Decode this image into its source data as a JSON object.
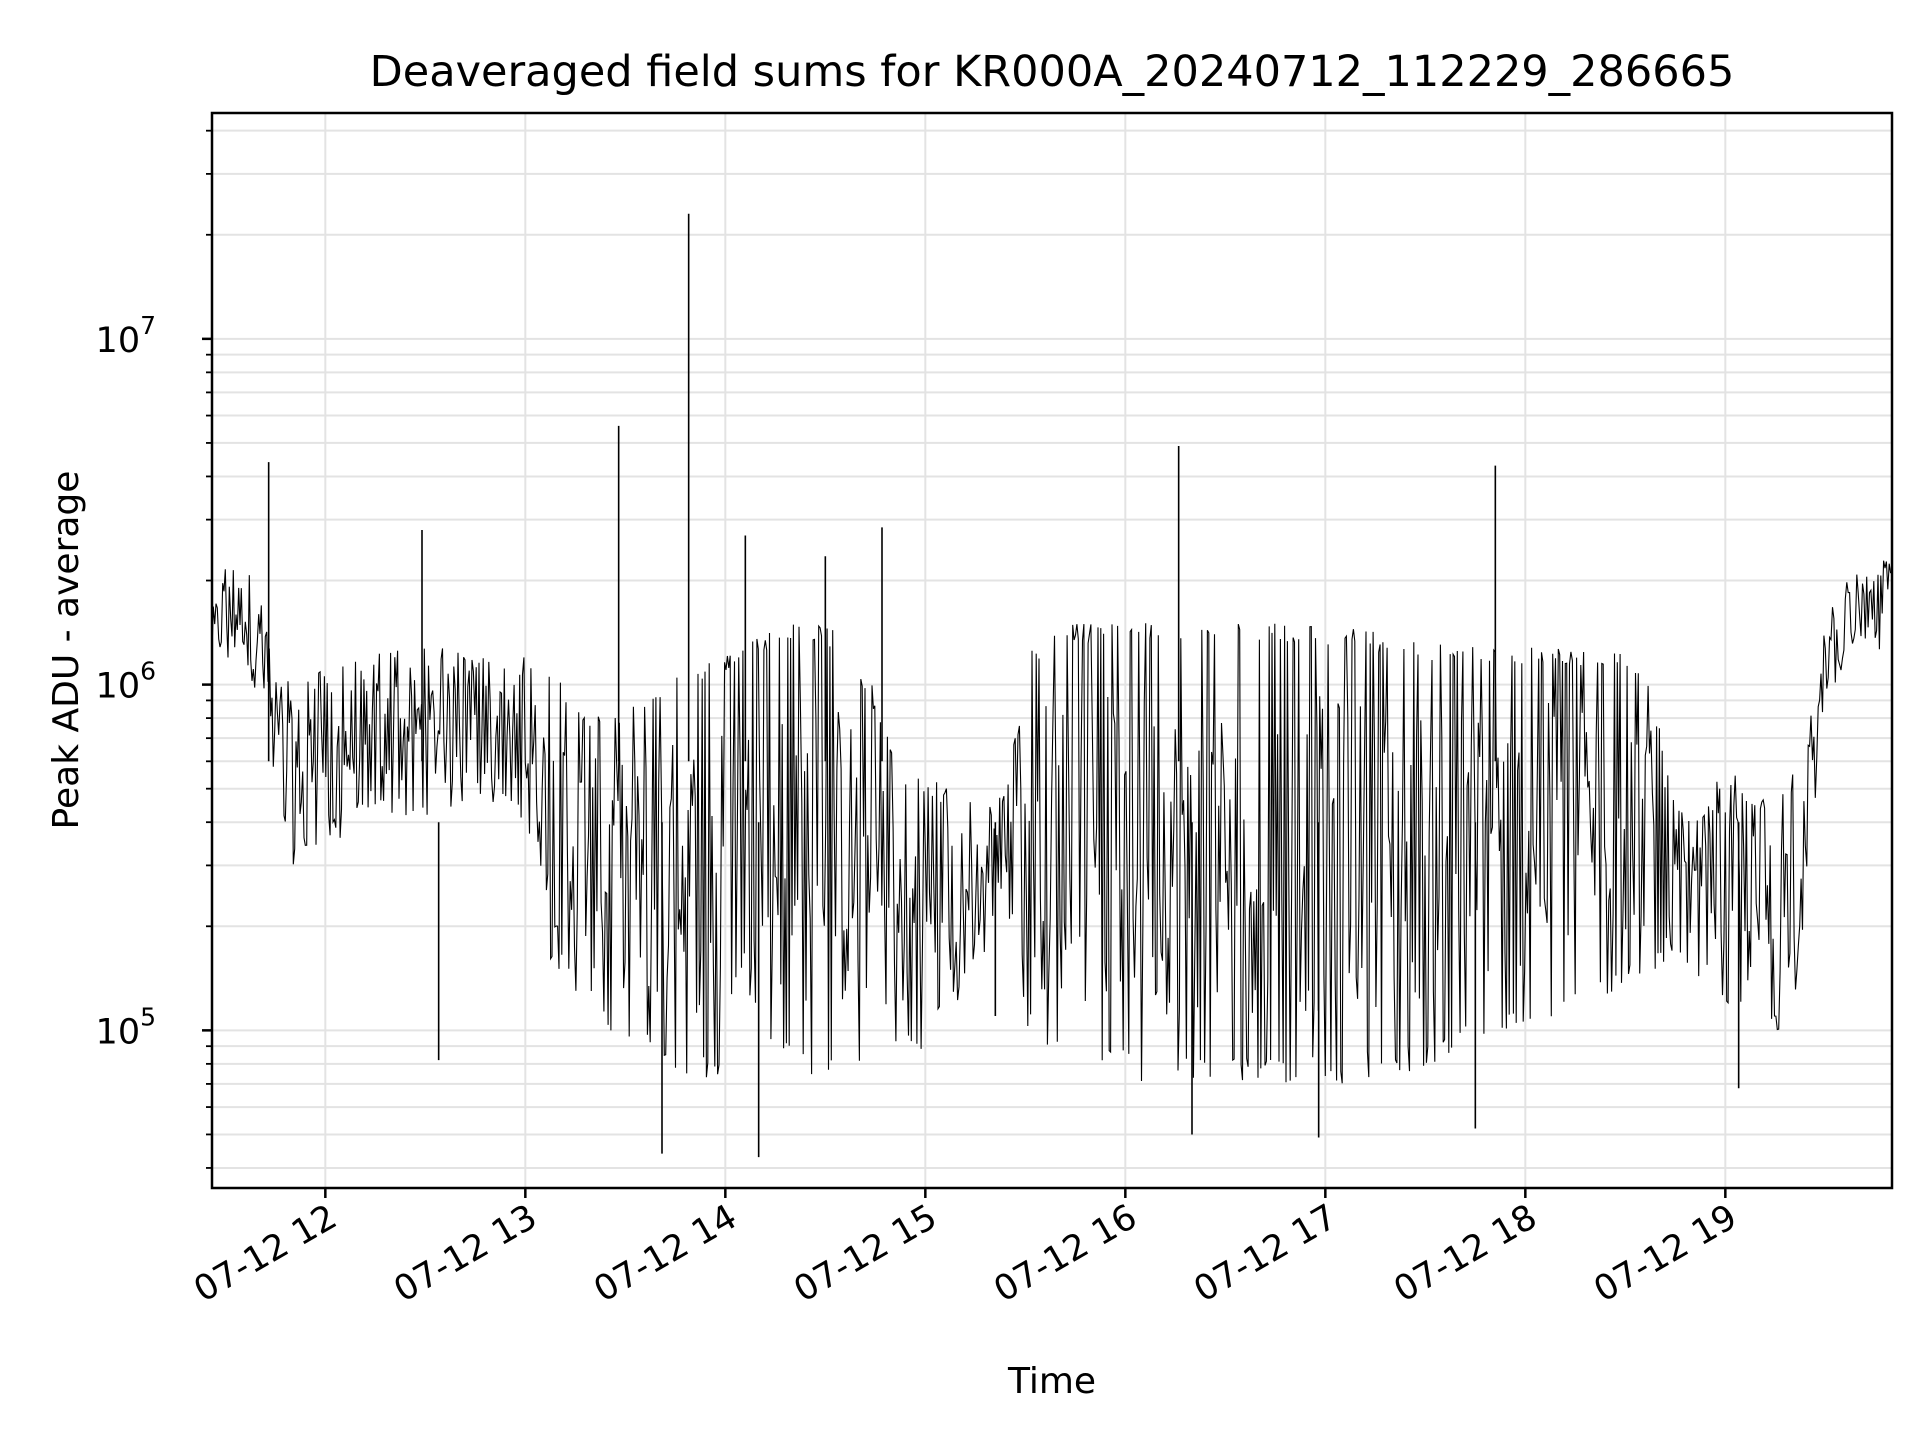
{
  "chart_data": {
    "type": "line",
    "title": "Deaveraged field sums for KR000A_20240712_112229_286665",
    "xlabel": "Time",
    "ylabel": "Peak ADU - average",
    "yscale": "log",
    "ylim": [
      35000,
      45000000
    ],
    "xlim": [
      "2024-07-12 11:26",
      "2024-07-12 19:50"
    ],
    "x_ticks": [
      {
        "time": "2024-07-12 12:00",
        "label": "07-12 12"
      },
      {
        "time": "2024-07-12 13:00",
        "label": "07-12 13"
      },
      {
        "time": "2024-07-12 14:00",
        "label": "07-12 14"
      },
      {
        "time": "2024-07-12 15:00",
        "label": "07-12 15"
      },
      {
        "time": "2024-07-12 16:00",
        "label": "07-12 16"
      },
      {
        "time": "2024-07-12 17:00",
        "label": "07-12 17"
      },
      {
        "time": "2024-07-12 18:00",
        "label": "07-12 18"
      },
      {
        "time": "2024-07-12 19:00",
        "label": "07-12 19"
      }
    ],
    "y_ticks": [
      {
        "value": 100000,
        "base": "10",
        "exp": "5"
      },
      {
        "value": 1000000,
        "base": "10",
        "exp": "6"
      },
      {
        "value": 10000000,
        "base": "10",
        "exp": "7"
      }
    ],
    "grid": true,
    "line_color": "#000000",
    "series": [
      {
        "x": [
          "2024-07-12 11:26",
          "2024-07-12 11:30",
          "2024-07-12 11:34",
          "2024-07-12 11:38",
          "2024-07-12 11:42",
          "2024-07-12 11:46",
          "2024-07-12 11:50",
          "2024-07-12 11:54",
          "2024-07-12 11:58",
          "2024-07-12 12:04",
          "2024-07-12 12:12",
          "2024-07-12 12:20",
          "2024-07-12 12:28",
          "2024-07-12 12:36",
          "2024-07-12 12:44",
          "2024-07-12 12:52",
          "2024-07-12 13:00",
          "2024-07-12 13:08",
          "2024-07-12 13:16",
          "2024-07-12 13:24",
          "2024-07-12 13:32",
          "2024-07-12 13:40",
          "2024-07-12 13:48",
          "2024-07-12 13:56",
          "2024-07-12 14:04",
          "2024-07-12 14:12",
          "2024-07-12 14:20",
          "2024-07-12 14:28",
          "2024-07-12 14:36",
          "2024-07-12 14:44",
          "2024-07-12 14:52",
          "2024-07-12 15:00",
          "2024-07-12 15:08",
          "2024-07-12 15:16",
          "2024-07-12 15:24",
          "2024-07-12 15:32",
          "2024-07-12 15:40",
          "2024-07-12 15:48",
          "2024-07-12 15:56",
          "2024-07-12 16:04",
          "2024-07-12 16:12",
          "2024-07-12 16:20",
          "2024-07-12 16:28",
          "2024-07-12 16:36",
          "2024-07-12 16:44",
          "2024-07-12 16:52",
          "2024-07-12 17:00",
          "2024-07-12 17:08",
          "2024-07-12 17:16",
          "2024-07-12 17:24",
          "2024-07-12 17:32",
          "2024-07-12 17:40",
          "2024-07-12 17:48",
          "2024-07-12 17:56",
          "2024-07-12 18:04",
          "2024-07-12 18:12",
          "2024-07-12 18:20",
          "2024-07-12 18:28",
          "2024-07-12 18:36",
          "2024-07-12 18:44",
          "2024-07-12 18:52",
          "2024-07-12 19:00",
          "2024-07-12 19:08",
          "2024-07-12 19:16",
          "2024-07-12 19:24",
          "2024-07-12 19:30",
          "2024-07-12 19:36",
          "2024-07-12 19:42",
          "2024-07-12 19:50"
        ],
        "y_high": [
          1800000,
          2300000,
          2200000,
          2500000,
          1600000,
          1000000,
          1100000,
          1100000,
          1100000,
          1200000,
          1250000,
          1250000,
          1300000,
          1300000,
          1200000,
          1200000,
          1200000,
          1100000,
          900000,
          800000,
          900000,
          1000000,
          1100000,
          1200000,
          1300000,
          1400000,
          1500000,
          1500000,
          1400000,
          1000000,
          600000,
          550000,
          500000,
          450000,
          500000,
          1300000,
          1500000,
          1500000,
          1500000,
          1550000,
          1500000,
          1500000,
          1500000,
          1500000,
          1500000,
          1500000,
          1500000,
          1500000,
          1400000,
          1400000,
          1350000,
          1300000,
          1300000,
          1300000,
          1300000,
          1300000,
          1250000,
          1250000,
          1200000,
          500000,
          400000,
          600000,
          500000,
          500000,
          600000,
          1800000,
          2000000,
          2200000,
          2500000
        ],
        "y_low": [
          1000000,
          1100000,
          1200000,
          1000000,
          700000,
          400000,
          300000,
          320000,
          350000,
          350000,
          380000,
          400000,
          420000,
          420000,
          450000,
          450000,
          400000,
          150000,
          120000,
          100000,
          90000,
          80000,
          75000,
          70000,
          75000,
          80000,
          80000,
          70000,
          70000,
          75000,
          80000,
          90000,
          110000,
          150000,
          200000,
          90000,
          80000,
          75000,
          75000,
          70000,
          70000,
          70000,
          70000,
          70000,
          70000,
          70000,
          70000,
          70000,
          75000,
          75000,
          80000,
          85000,
          90000,
          95000,
          100000,
          110000,
          120000,
          130000,
          140000,
          150000,
          130000,
          120000,
          100000,
          100000,
          150000,
          900000,
          1100000,
          1200000,
          1200000
        ]
      }
    ],
    "spikes": [
      {
        "time": "2024-07-12 11:43",
        "value": 4400000
      },
      {
        "time": "2024-07-12 12:29",
        "value": 2800000
      },
      {
        "time": "2024-07-12 12:34",
        "value": 82000
      },
      {
        "time": "2024-07-12 13:28",
        "value": 5600000
      },
      {
        "time": "2024-07-12 13:41",
        "value": 44000
      },
      {
        "time": "2024-07-12 13:49",
        "value": 23000000
      },
      {
        "time": "2024-07-12 14:06",
        "value": 2700000
      },
      {
        "time": "2024-07-12 14:10",
        "value": 43000
      },
      {
        "time": "2024-07-12 14:30",
        "value": 2350000
      },
      {
        "time": "2024-07-12 14:47",
        "value": 2850000
      },
      {
        "time": "2024-07-12 15:21",
        "value": 110000
      },
      {
        "time": "2024-07-12 16:16",
        "value": 4900000
      },
      {
        "time": "2024-07-12 16:20",
        "value": 50000
      },
      {
        "time": "2024-07-12 16:58",
        "value": 49000
      },
      {
        "time": "2024-07-12 17:45",
        "value": 52000
      },
      {
        "time": "2024-07-12 17:51",
        "value": 4300000
      },
      {
        "time": "2024-07-12 19:04",
        "value": 68000
      }
    ]
  }
}
